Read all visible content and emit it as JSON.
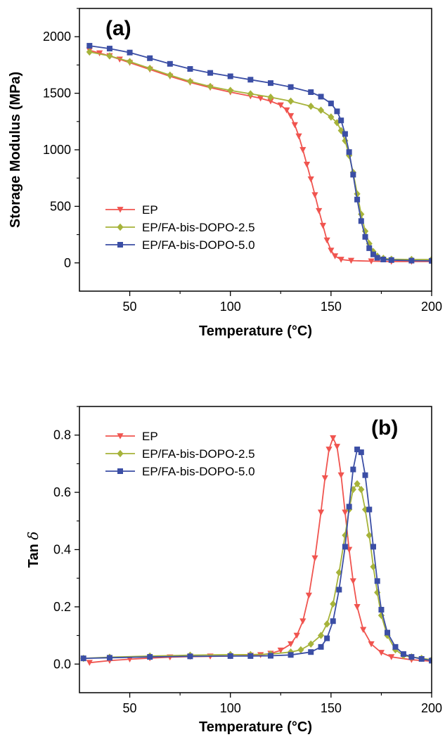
{
  "chart_data": [
    {
      "type": "line",
      "panel_label": "(a)",
      "xlabel": "Temperature (°C)",
      "ylabel": "Storage Modulus (MPa)",
      "xlim": [
        25,
        200
      ],
      "ylim": [
        -250,
        2250
      ],
      "x_ticks": [
        50,
        100,
        150,
        200
      ],
      "y_ticks": [
        0,
        500,
        1000,
        1500,
        2000
      ],
      "x_tick_labels": [
        "50",
        "100",
        "150",
        "200"
      ],
      "y_tick_labels": [
        "0",
        "500",
        "1000",
        "1500",
        "2000"
      ],
      "grid": false,
      "legend_position": "lower-left",
      "series": [
        {
          "name": "EP",
          "marker": "triangle-down",
          "color": "#f0544f",
          "points": [
            [
              30,
              1880
            ],
            [
              35,
              1855
            ],
            [
              40,
              1830
            ],
            [
              45,
              1800
            ],
            [
              50,
              1770
            ],
            [
              60,
              1710
            ],
            [
              70,
              1650
            ],
            [
              80,
              1595
            ],
            [
              90,
              1550
            ],
            [
              100,
              1510
            ],
            [
              110,
              1475
            ],
            [
              115,
              1455
            ],
            [
              120,
              1430
            ],
            [
              125,
              1395
            ],
            [
              128,
              1350
            ],
            [
              130,
              1300
            ],
            [
              132,
              1220
            ],
            [
              134,
              1120
            ],
            [
              136,
              1000
            ],
            [
              138,
              870
            ],
            [
              140,
              740
            ],
            [
              142,
              600
            ],
            [
              144,
              460
            ],
            [
              146,
              330
            ],
            [
              148,
              200
            ],
            [
              150,
              110
            ],
            [
              152,
              60
            ],
            [
              155,
              30
            ],
            [
              160,
              20
            ],
            [
              170,
              15
            ],
            [
              180,
              12
            ],
            [
              190,
              12
            ],
            [
              200,
              12
            ]
          ]
        },
        {
          "name": "EP/FA-bis-DOPO-2.5",
          "marker": "diamond",
          "color": "#a6b33a",
          "points": [
            [
              30,
              1865
            ],
            [
              40,
              1830
            ],
            [
              50,
              1780
            ],
            [
              60,
              1720
            ],
            [
              70,
              1660
            ],
            [
              80,
              1605
            ],
            [
              90,
              1560
            ],
            [
              100,
              1525
            ],
            [
              110,
              1495
            ],
            [
              120,
              1465
            ],
            [
              130,
              1430
            ],
            [
              140,
              1385
            ],
            [
              145,
              1350
            ],
            [
              150,
              1290
            ],
            [
              153,
              1240
            ],
            [
              155,
              1170
            ],
            [
              157,
              1080
            ],
            [
              159,
              950
            ],
            [
              161,
              800
            ],
            [
              163,
              610
            ],
            [
              165,
              430
            ],
            [
              167,
              280
            ],
            [
              169,
              170
            ],
            [
              171,
              100
            ],
            [
              173,
              60
            ],
            [
              176,
              40
            ],
            [
              180,
              32
            ],
            [
              190,
              30
            ],
            [
              200,
              30
            ]
          ]
        },
        {
          "name": "EP/FA-bis-DOPO-5.0",
          "marker": "square",
          "color": "#3b4ea5",
          "points": [
            [
              30,
              1920
            ],
            [
              40,
              1895
            ],
            [
              50,
              1860
            ],
            [
              60,
              1810
            ],
            [
              70,
              1760
            ],
            [
              80,
              1715
            ],
            [
              90,
              1680
            ],
            [
              100,
              1650
            ],
            [
              110,
              1620
            ],
            [
              120,
              1590
            ],
            [
              130,
              1555
            ],
            [
              140,
              1510
            ],
            [
              145,
              1470
            ],
            [
              150,
              1410
            ],
            [
              153,
              1340
            ],
            [
              155,
              1260
            ],
            [
              157,
              1140
            ],
            [
              159,
              980
            ],
            [
              161,
              780
            ],
            [
              163,
              560
            ],
            [
              165,
              370
            ],
            [
              167,
              230
            ],
            [
              169,
              130
            ],
            [
              171,
              75
            ],
            [
              173,
              45
            ],
            [
              176,
              30
            ],
            [
              180,
              25
            ],
            [
              190,
              20
            ],
            [
              200,
              18
            ]
          ]
        }
      ]
    },
    {
      "type": "line",
      "panel_label": "(b)",
      "xlabel": "Temperature (°C)",
      "ylabel_text": "Tan ",
      "ylabel_symbol": "δ",
      "xlim": [
        25,
        200
      ],
      "ylim": [
        -0.1,
        0.9
      ],
      "x_ticks": [
        50,
        100,
        150,
        200
      ],
      "y_ticks": [
        0.0,
        0.2,
        0.4,
        0.6,
        0.8
      ],
      "x_tick_labels": [
        "50",
        "100",
        "150",
        "200"
      ],
      "y_tick_labels": [
        "0.0",
        "0.2",
        "0.4",
        "0.6",
        "0.8"
      ],
      "grid": false,
      "legend_position": "top-left",
      "series": [
        {
          "name": "EP",
          "marker": "triangle-down",
          "color": "#f0544f",
          "points": [
            [
              30,
              0.005
            ],
            [
              40,
              0.012
            ],
            [
              50,
              0.017
            ],
            [
              60,
              0.021
            ],
            [
              70,
              0.024
            ],
            [
              80,
              0.026
            ],
            [
              90,
              0.027
            ],
            [
              100,
              0.028
            ],
            [
              110,
              0.03
            ],
            [
              115,
              0.032
            ],
            [
              120,
              0.037
            ],
            [
              125,
              0.048
            ],
            [
              130,
              0.07
            ],
            [
              133,
              0.1
            ],
            [
              136,
              0.15
            ],
            [
              139,
              0.24
            ],
            [
              142,
              0.37
            ],
            [
              145,
              0.53
            ],
            [
              147,
              0.65
            ],
            [
              149,
              0.75
            ],
            [
              151,
              0.79
            ],
            [
              153,
              0.76
            ],
            [
              155,
              0.66
            ],
            [
              157,
              0.53
            ],
            [
              159,
              0.4
            ],
            [
              161,
              0.29
            ],
            [
              163,
              0.2
            ],
            [
              166,
              0.12
            ],
            [
              170,
              0.07
            ],
            [
              175,
              0.04
            ],
            [
              180,
              0.025
            ],
            [
              190,
              0.015
            ],
            [
              200,
              0.01
            ]
          ]
        },
        {
          "name": "EP/FA-bis-DOPO-2.5",
          "marker": "diamond",
          "color": "#a6b33a",
          "points": [
            [
              27,
              0.02
            ],
            [
              40,
              0.024
            ],
            [
              60,
              0.028
            ],
            [
              80,
              0.031
            ],
            [
              100,
              0.033
            ],
            [
              110,
              0.033
            ],
            [
              120,
              0.035
            ],
            [
              130,
              0.042
            ],
            [
              135,
              0.05
            ],
            [
              140,
              0.07
            ],
            [
              145,
              0.1
            ],
            [
              148,
              0.14
            ],
            [
              151,
              0.21
            ],
            [
              154,
              0.32
            ],
            [
              157,
              0.45
            ],
            [
              159,
              0.54
            ],
            [
              161,
              0.61
            ],
            [
              163,
              0.63
            ],
            [
              165,
              0.61
            ],
            [
              167,
              0.54
            ],
            [
              169,
              0.45
            ],
            [
              171,
              0.34
            ],
            [
              173,
              0.25
            ],
            [
              175,
              0.17
            ],
            [
              178,
              0.1
            ],
            [
              182,
              0.05
            ],
            [
              186,
              0.03
            ],
            [
              190,
              0.025
            ],
            [
              195,
              0.02
            ],
            [
              200,
              0.015
            ]
          ]
        },
        {
          "name": "EP/FA-bis-DOPO-5.0",
          "marker": "square",
          "color": "#3b4ea5",
          "points": [
            [
              27,
              0.02
            ],
            [
              40,
              0.022
            ],
            [
              60,
              0.025
            ],
            [
              80,
              0.027
            ],
            [
              100,
              0.028
            ],
            [
              110,
              0.028
            ],
            [
              120,
              0.029
            ],
            [
              130,
              0.032
            ],
            [
              140,
              0.042
            ],
            [
              145,
              0.06
            ],
            [
              148,
              0.09
            ],
            [
              151,
              0.15
            ],
            [
              154,
              0.26
            ],
            [
              157,
              0.41
            ],
            [
              159,
              0.55
            ],
            [
              161,
              0.68
            ],
            [
              163,
              0.75
            ],
            [
              165,
              0.74
            ],
            [
              167,
              0.66
            ],
            [
              169,
              0.54
            ],
            [
              171,
              0.41
            ],
            [
              173,
              0.29
            ],
            [
              175,
              0.19
            ],
            [
              178,
              0.11
            ],
            [
              182,
              0.06
            ],
            [
              186,
              0.035
            ],
            [
              190,
              0.025
            ],
            [
              195,
              0.018
            ],
            [
              200,
              0.012
            ]
          ]
        }
      ]
    }
  ]
}
